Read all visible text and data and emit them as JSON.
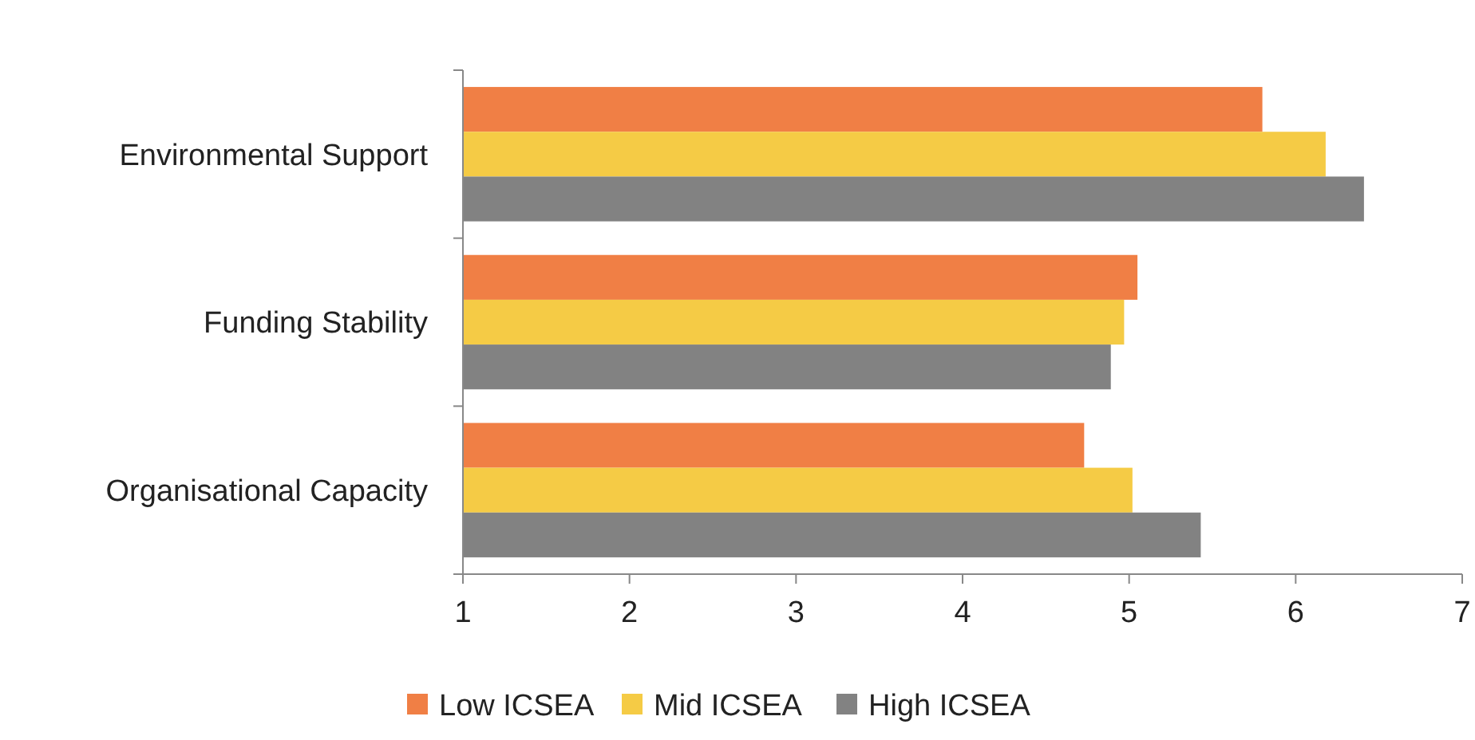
{
  "chart_data": {
    "type": "bar",
    "orientation": "horizontal",
    "categories": [
      "Environmental Support",
      "Funding Stability",
      "Organisational Capacity"
    ],
    "series": [
      {
        "name": "Low ICSEA",
        "color": "#f07f45",
        "values": [
          5.8,
          5.05,
          4.73
        ]
      },
      {
        "name": "Mid ICSEA",
        "color": "#f5cb45",
        "values": [
          6.18,
          4.97,
          5.02
        ]
      },
      {
        "name": "High ICSEA",
        "color": "#828282",
        "values": [
          6.41,
          4.89,
          5.43
        ]
      }
    ],
    "xlim": [
      1,
      7
    ],
    "xticks": [
      1,
      2,
      3,
      4,
      5,
      6,
      7
    ],
    "grid": false,
    "legend": "bottom"
  }
}
